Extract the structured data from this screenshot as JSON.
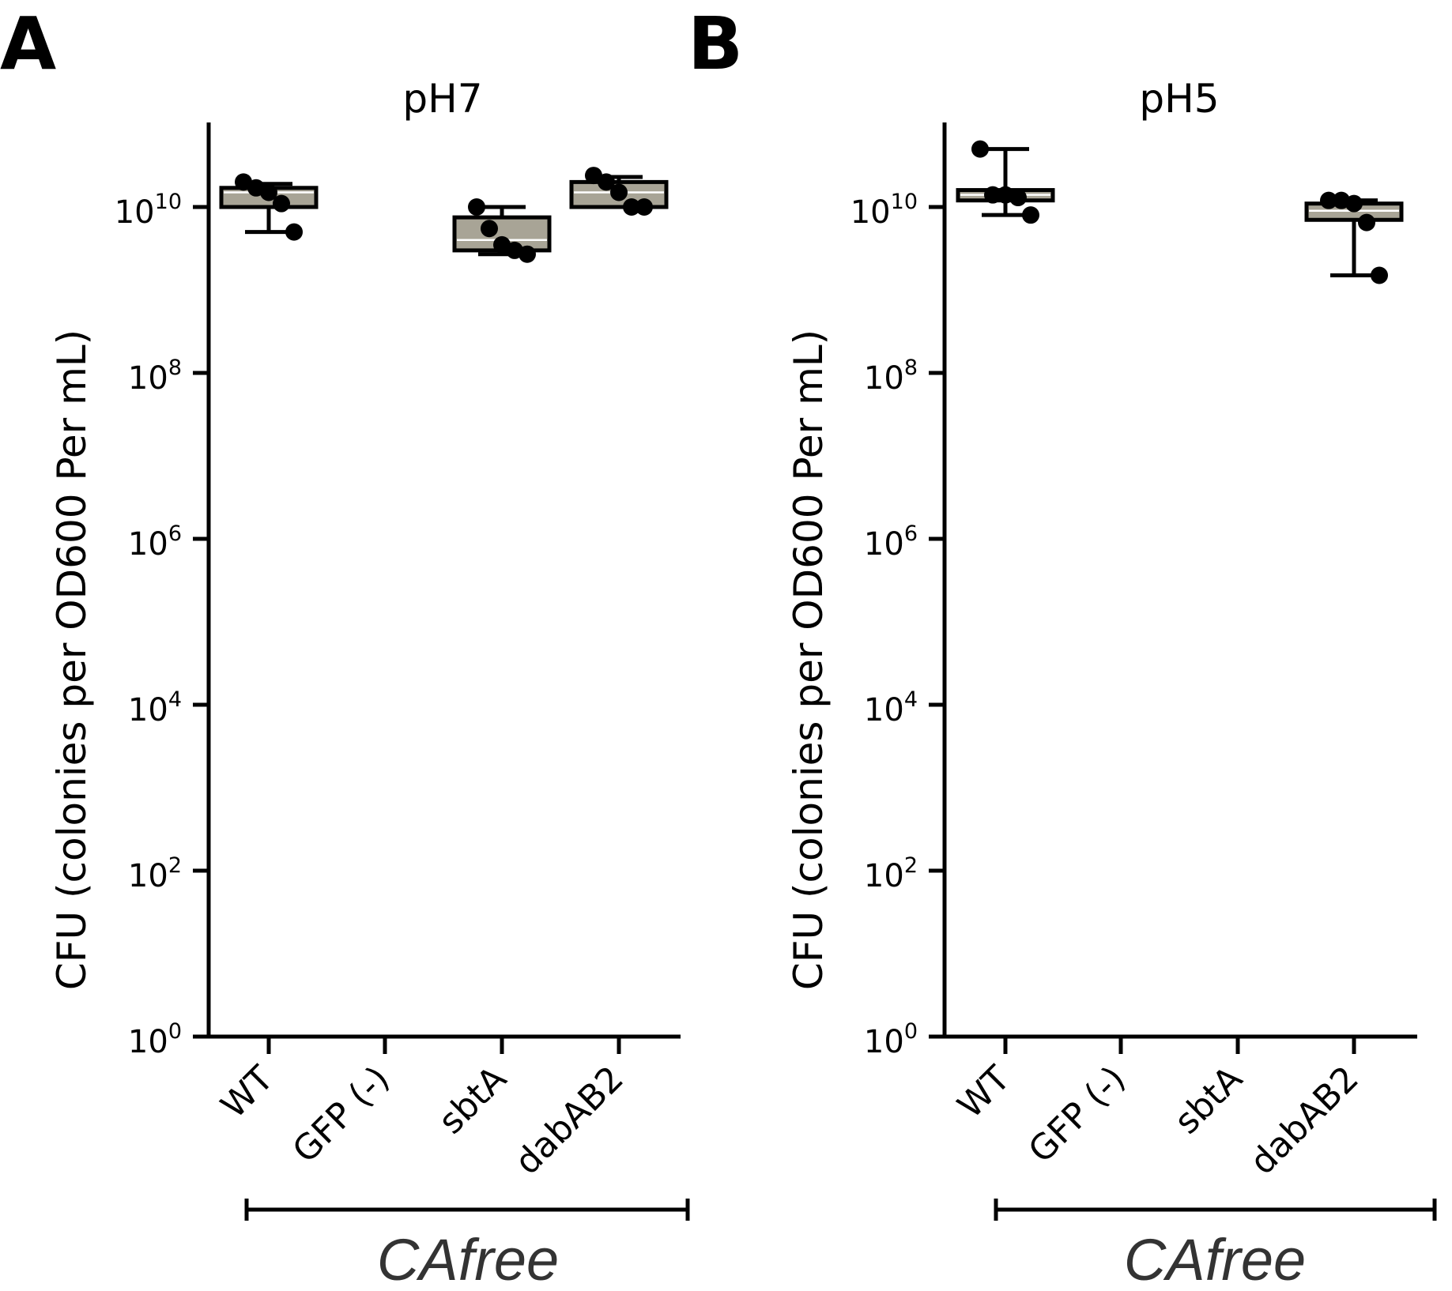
{
  "colors": {
    "box_fill": "#a8a496",
    "ink": "#000000",
    "group_label": "#333333"
  },
  "chart_data": [
    {
      "panel_letter": "A",
      "type": "box",
      "title": "pH7",
      "xlabel": "",
      "ylabel": "CFU (colonies per OD600 Per mL)",
      "yscale": "log10",
      "ylim": [
        1,
        100000000000
      ],
      "yticks": [
        {
          "base": "10",
          "exp": "0"
        },
        {
          "base": "10",
          "exp": "2"
        },
        {
          "base": "10",
          "exp": "4"
        },
        {
          "base": "10",
          "exp": "6"
        },
        {
          "base": "10",
          "exp": "8"
        },
        {
          "base": "10",
          "exp": "10"
        }
      ],
      "categories": [
        "WT",
        "GFP (-)",
        "sbtA",
        "dabAB2"
      ],
      "group_label": "CAfree",
      "boxes": [
        {
          "category": "WT",
          "min": 5000000000,
          "q1": 10000000000,
          "median": 15000000000,
          "q3": 17000000000,
          "max": 19000000000,
          "points": [
            20000000000,
            17000000000,
            15000000000,
            11000000000,
            5000000000
          ]
        },
        null,
        {
          "category": "sbtA",
          "min": 2700000000,
          "q1": 3000000000,
          "median": 4000000000,
          "q3": 7500000000,
          "max": 10000000000,
          "points": [
            10000000000,
            5500000000,
            3500000000,
            3000000000,
            2700000000
          ]
        },
        {
          "category": "dabAB2",
          "min": 10000000000,
          "q1": 10000000000,
          "median": 15000000000,
          "q3": 20000000000,
          "max": 23000000000,
          "points": [
            24000000000,
            20000000000,
            15000000000,
            10000000000,
            10000000000
          ]
        }
      ]
    },
    {
      "panel_letter": "B",
      "type": "box",
      "title": "pH5",
      "xlabel": "",
      "ylabel": "CFU (colonies per OD600 Per mL)",
      "yscale": "log10",
      "ylim": [
        1,
        100000000000
      ],
      "yticks": [
        {
          "base": "10",
          "exp": "0"
        },
        {
          "base": "10",
          "exp": "2"
        },
        {
          "base": "10",
          "exp": "4"
        },
        {
          "base": "10",
          "exp": "6"
        },
        {
          "base": "10",
          "exp": "8"
        },
        {
          "base": "10",
          "exp": "10"
        }
      ],
      "categories": [
        "WT",
        "GFP (-)",
        "sbtA",
        "dabAB2"
      ],
      "group_label": "CAfree",
      "boxes": [
        {
          "category": "WT",
          "min": 8000000000,
          "q1": 12000000000,
          "median": 14000000000,
          "q3": 16000000000,
          "max": 50000000000,
          "points": [
            50000000000,
            14000000000,
            14000000000,
            13000000000,
            8000000000
          ]
        },
        null,
        null,
        {
          "category": "dabAB2",
          "min": 1500000000,
          "q1": 7000000000,
          "median": 9000000000,
          "q3": 11000000000,
          "max": 12000000000,
          "points": [
            12000000000,
            12000000000,
            11000000000,
            6500000000,
            1500000000
          ]
        }
      ]
    }
  ]
}
